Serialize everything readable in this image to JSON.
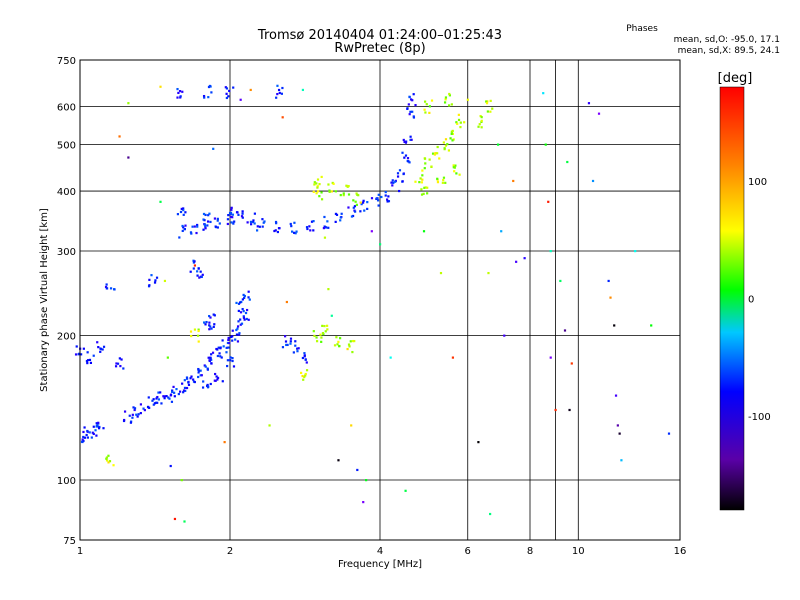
{
  "title": "Tromsø 20140404 01:24:00–01:25:43",
  "subtitle": "RwPretec (8p)",
  "stats": {
    "heading": "Phases",
    "line_o": "mean, sd,O: -95.0, 17.1",
    "line_x": "mean, sd,X:  89.5, 24.1"
  },
  "chart_data": {
    "type": "scatter",
    "title": "Tromsø 20140404 01:24:00–01:25:43",
    "subtitle": "RwPretec (8p)",
    "xlabel": "Frequency [MHz]",
    "ylabel": "Stationary phase Virtual Height [km]",
    "x_scale": "log",
    "y_scale": "log",
    "xlim": [
      1,
      16
    ],
    "ylim": [
      75,
      750
    ],
    "x_ticks": [
      1,
      2,
      4,
      6,
      8,
      10,
      16
    ],
    "x_tick_labels": [
      "1",
      "2",
      "4",
      "6",
      "8",
      "10",
      "16"
    ],
    "y_ticks": [
      75,
      100,
      200,
      300,
      400,
      500,
      600,
      750
    ],
    "y_tick_labels": [
      "75",
      "100",
      "200",
      "300",
      "400",
      "500",
      "600",
      "750"
    ],
    "grid": true,
    "colorbar": {
      "label": "[deg]",
      "range": [
        -180,
        180
      ],
      "ticks": [
        100,
        0,
        -100
      ],
      "tick_labels": [
        "100",
        "0",
        "-100"
      ]
    },
    "series": [
      {
        "mode": "O",
        "points": [
          [
            1.02,
            123
          ],
          [
            1.04,
            125
          ],
          [
            1.07,
            127
          ],
          [
            1.1,
            128
          ],
          [
            1.25,
            135
          ],
          [
            1.3,
            138
          ],
          [
            1.35,
            141
          ],
          [
            1.4,
            145
          ],
          [
            1.45,
            148
          ],
          [
            1.5,
            150
          ],
          [
            1.55,
            152
          ],
          [
            1.6,
            155
          ],
          [
            1.65,
            160
          ],
          [
            1.7,
            165
          ],
          [
            1.75,
            170
          ],
          [
            1.8,
            175
          ],
          [
            1.85,
            180
          ],
          [
            1.9,
            185
          ],
          [
            1.95,
            190
          ],
          [
            2.0,
            195
          ],
          [
            2.05,
            200
          ],
          [
            2.1,
            210
          ],
          [
            2.15,
            220
          ],
          [
            2.0,
            175
          ],
          [
            1.9,
            165
          ],
          [
            1.8,
            160
          ],
          [
            1.6,
            330
          ],
          [
            1.7,
            335
          ],
          [
            1.8,
            340
          ],
          [
            1.9,
            345
          ],
          [
            2.0,
            350
          ],
          [
            2.1,
            355
          ],
          [
            2.3,
            340
          ],
          [
            2.5,
            335
          ],
          [
            2.7,
            335
          ],
          [
            2.9,
            338
          ],
          [
            3.1,
            345
          ],
          [
            3.3,
            352
          ],
          [
            3.5,
            362
          ],
          [
            3.7,
            372
          ],
          [
            3.9,
            382
          ],
          [
            4.1,
            392
          ],
          [
            4.3,
            410
          ],
          [
            4.4,
            430
          ],
          [
            4.5,
            470
          ],
          [
            4.55,
            520
          ],
          [
            4.6,
            580
          ],
          [
            4.65,
            620
          ],
          [
            1.6,
            360
          ],
          [
            1.8,
            355
          ],
          [
            2.0,
            360
          ],
          [
            2.2,
            350
          ],
          [
            1.6,
            640
          ],
          [
            1.8,
            645
          ],
          [
            2.0,
            640
          ],
          [
            2.5,
            645
          ],
          [
            1.7,
            280
          ],
          [
            1.75,
            270
          ],
          [
            1.0,
            185
          ],
          [
            1.05,
            180
          ],
          [
            1.1,
            190
          ],
          [
            1.2,
            175
          ],
          [
            1.15,
            250
          ],
          [
            1.4,
            260
          ],
          [
            2.6,
            195
          ],
          [
            2.7,
            190
          ],
          [
            2.8,
            180
          ],
          [
            1.8,
            210
          ],
          [
            1.85,
            215
          ],
          [
            2.1,
            230
          ],
          [
            2.15,
            240
          ]
        ]
      },
      {
        "mode": "X",
        "points": [
          [
            3.0,
            200
          ],
          [
            3.1,
            205
          ],
          [
            3.3,
            195
          ],
          [
            3.5,
            190
          ],
          [
            3.0,
            420
          ],
          [
            3.2,
            410
          ],
          [
            3.4,
            400
          ],
          [
            3.0,
            395
          ],
          [
            3.6,
            385
          ],
          [
            4.8,
            430
          ],
          [
            5.0,
            460
          ],
          [
            5.2,
            480
          ],
          [
            5.4,
            500
          ],
          [
            5.6,
            520
          ],
          [
            5.8,
            560
          ],
          [
            5.0,
            600
          ],
          [
            5.5,
            620
          ],
          [
            4.9,
            400
          ],
          [
            5.3,
            420
          ],
          [
            5.7,
            440
          ],
          [
            6.4,
            560
          ],
          [
            6.6,
            600
          ],
          [
            1.15,
            110
          ],
          [
            1.7,
            200
          ],
          [
            2.8,
            165
          ]
        ]
      }
    ],
    "scatter_isolated": [
      [
        1.25,
        610
      ],
      [
        1.25,
        470
      ],
      [
        1.2,
        520
      ],
      [
        1.45,
        660
      ],
      [
        1.45,
        380
      ],
      [
        1.48,
        260
      ],
      [
        1.5,
        180
      ],
      [
        1.52,
        107
      ],
      [
        1.55,
        83
      ],
      [
        1.6,
        100
      ],
      [
        1.62,
        82
      ],
      [
        1.7,
        280
      ],
      [
        1.85,
        490
      ],
      [
        1.95,
        120
      ],
      [
        2.1,
        620
      ],
      [
        2.2,
        650
      ],
      [
        2.4,
        130
      ],
      [
        2.55,
        570
      ],
      [
        2.6,
        235
      ],
      [
        2.8,
        650
      ],
      [
        3.1,
        320
      ],
      [
        3.15,
        250
      ],
      [
        3.2,
        220
      ],
      [
        3.3,
        110
      ],
      [
        3.5,
        130
      ],
      [
        3.6,
        105
      ],
      [
        3.7,
        90
      ],
      [
        3.75,
        100
      ],
      [
        3.85,
        330
      ],
      [
        4.0,
        310
      ],
      [
        4.2,
        180
      ],
      [
        4.5,
        95
      ],
      [
        4.9,
        330
      ],
      [
        5.3,
        270
      ],
      [
        5.6,
        180
      ],
      [
        6.0,
        620
      ],
      [
        6.3,
        120
      ],
      [
        6.6,
        270
      ],
      [
        6.65,
        85
      ],
      [
        6.9,
        500
      ],
      [
        7.0,
        330
      ],
      [
        7.1,
        200
      ],
      [
        7.4,
        420
      ],
      [
        7.5,
        285
      ],
      [
        7.8,
        290
      ],
      [
        8.5,
        640
      ],
      [
        8.6,
        500
      ],
      [
        8.7,
        380
      ],
      [
        8.8,
        300
      ],
      [
        8.8,
        180
      ],
      [
        9.0,
        140
      ],
      [
        9.2,
        260
      ],
      [
        9.4,
        205
      ],
      [
        9.5,
        460
      ],
      [
        9.6,
        140
      ],
      [
        9.7,
        175
      ],
      [
        10.5,
        610
      ],
      [
        10.7,
        420
      ],
      [
        11.0,
        580
      ],
      [
        11.5,
        260
      ],
      [
        11.6,
        240
      ],
      [
        11.8,
        210
      ],
      [
        11.9,
        150
      ],
      [
        12.0,
        130
      ],
      [
        12.1,
        125
      ],
      [
        12.2,
        110
      ],
      [
        13.0,
        300
      ],
      [
        14.0,
        210
      ],
      [
        15.2,
        125
      ]
    ]
  }
}
